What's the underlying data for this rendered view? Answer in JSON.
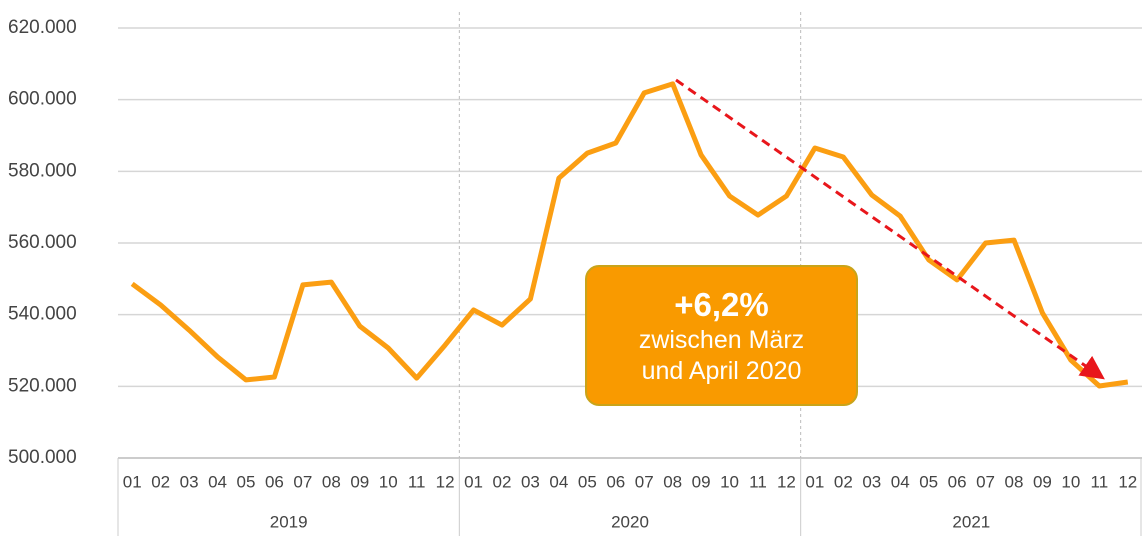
{
  "chart_data": {
    "type": "line",
    "categories": [
      "01",
      "02",
      "03",
      "04",
      "05",
      "06",
      "07",
      "08",
      "09",
      "10",
      "11",
      "12",
      "01",
      "02",
      "03",
      "04",
      "05",
      "06",
      "07",
      "08",
      "09",
      "10",
      "11",
      "12",
      "01",
      "02",
      "03",
      "04",
      "05",
      "06",
      "07",
      "08",
      "09",
      "10",
      "11",
      "12"
    ],
    "groups": [
      "2019",
      "2020",
      "2021"
    ],
    "series": [
      {
        "color": "#fb9e12",
        "values": [
          548600,
          542700,
          535700,
          528200,
          521800,
          522600,
          548300,
          549100,
          536800,
          530700,
          522300,
          531500,
          541300,
          537100,
          544400,
          578100,
          585100,
          587900,
          601900,
          604400,
          584600,
          573100,
          567800,
          573100,
          586500,
          584000,
          573400,
          567500,
          555300,
          549700,
          560000,
          560800,
          540500,
          527300,
          520100,
          521200
        ]
      }
    ],
    "ylim": [
      500000,
      620000
    ],
    "yticks": [
      {
        "value": 500000,
        "label": "500.000"
      },
      {
        "value": 520000,
        "label": "520.000"
      },
      {
        "value": 540000,
        "label": "540.000"
      },
      {
        "value": 560000,
        "label": "560.000"
      },
      {
        "value": 580000,
        "label": "580.000"
      },
      {
        "value": 600000,
        "label": "600.000"
      },
      {
        "value": 620000,
        "label": "620.000"
      }
    ],
    "grid": true,
    "annotation": {
      "headline": "+6,2%",
      "lines": [
        "zwischen März",
        "und April 2020"
      ]
    }
  }
}
